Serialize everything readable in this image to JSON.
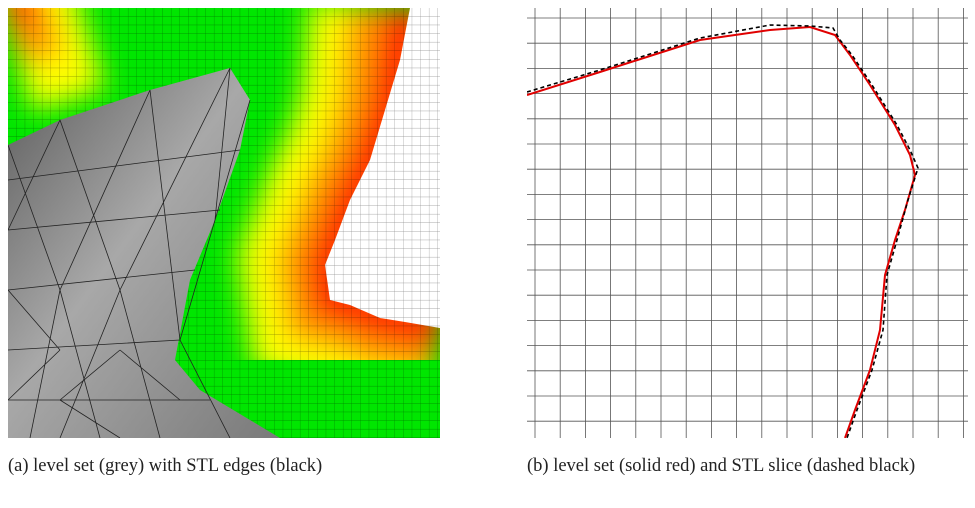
{
  "figure": {
    "subfigures": [
      {
        "caption": "(a)  level set (grey) with STL edges (black)"
      },
      {
        "caption": "(b)  level set (solid red) and STL slice (dashed black)"
      }
    ]
  }
}
